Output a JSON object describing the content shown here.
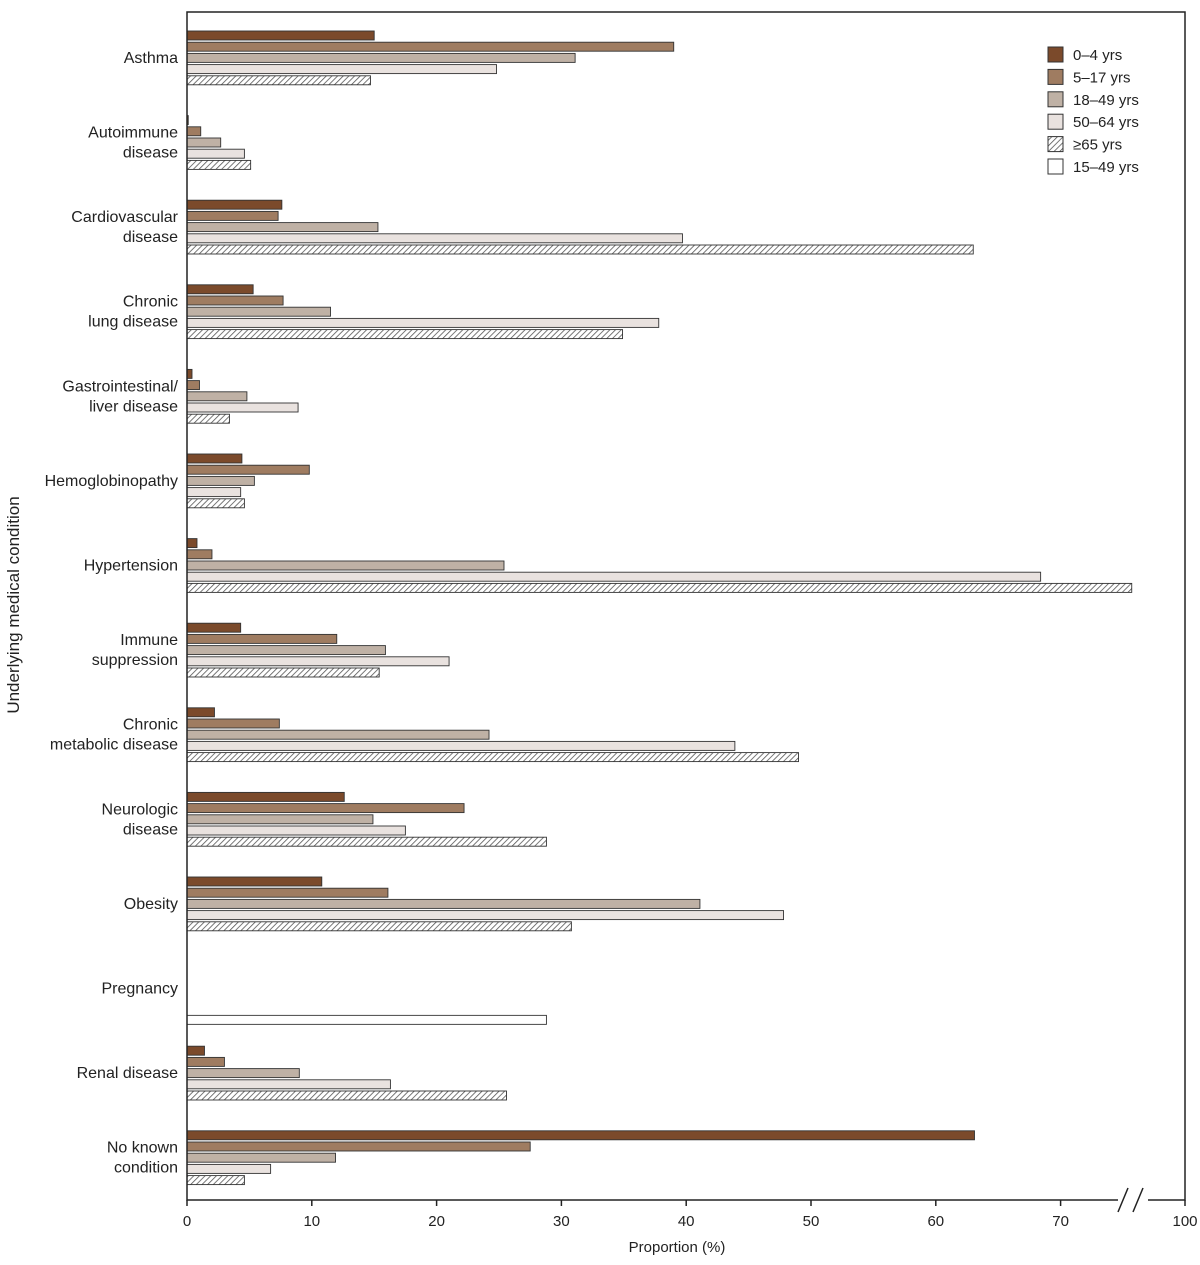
{
  "chart_data": {
    "type": "bar",
    "orientation": "horizontal",
    "xlabel": "Proportion (%)",
    "ylabel": "Underlying medical condition",
    "xlim": [
      0,
      100
    ],
    "axis_break": [
      75,
      100
    ],
    "x_ticks": [
      0,
      10,
      20,
      30,
      40,
      50,
      60,
      70,
      100
    ],
    "legend_position": "top-right",
    "categories": [
      [
        "Asthma"
      ],
      [
        "Autoimmune",
        "disease"
      ],
      [
        "Cardiovascular",
        "disease"
      ],
      [
        "Chronic",
        "lung disease"
      ],
      [
        "Gastrointestinal/",
        "liver disease"
      ],
      [
        "Hemoglobinopathy"
      ],
      [
        "Hypertension"
      ],
      [
        "Immune",
        "suppression"
      ],
      [
        "Chronic",
        "metabolic disease"
      ],
      [
        "Neurologic",
        "disease"
      ],
      [
        "Obesity"
      ],
      [
        "Pregnancy"
      ],
      [
        "Renal disease"
      ],
      [
        "No known",
        "condition"
      ]
    ],
    "series": [
      {
        "name": "0–4 yrs",
        "color": "#7b4a2b",
        "pattern": "solid",
        "values": [
          15.0,
          0.1,
          7.6,
          5.3,
          0.4,
          4.4,
          0.8,
          4.3,
          2.2,
          12.6,
          10.8,
          null,
          1.4,
          63.1
        ]
      },
      {
        "name": "5–17 yrs",
        "color": "#9f7c61",
        "pattern": "solid",
        "values": [
          39.0,
          1.1,
          7.3,
          7.7,
          1.0,
          9.8,
          2.0,
          12.0,
          7.4,
          22.2,
          16.1,
          null,
          3.0,
          27.5
        ]
      },
      {
        "name": "18–49 yrs",
        "color": "#bfb1a5",
        "pattern": "solid",
        "values": [
          31.1,
          2.7,
          15.3,
          11.5,
          4.8,
          5.4,
          25.4,
          15.9,
          24.2,
          14.9,
          41.1,
          null,
          9.0,
          11.9
        ]
      },
      {
        "name": "50–64 yrs",
        "color": "#e9e2df",
        "pattern": "solid",
        "values": [
          24.8,
          4.6,
          39.7,
          37.8,
          8.9,
          4.3,
          68.4,
          21.0,
          43.9,
          17.5,
          47.8,
          null,
          16.3,
          6.7
        ]
      },
      {
        "name": "≥65 yrs",
        "color": "#ffffff",
        "pattern": "hatched",
        "values": [
          14.7,
          5.1,
          63.0,
          34.9,
          3.4,
          4.6,
          75.7,
          15.4,
          49.0,
          28.8,
          30.8,
          null,
          25.6,
          4.6
        ]
      },
      {
        "name": "15–49 yrs",
        "color": "#ffffff",
        "pattern": "solid",
        "values": [
          null,
          null,
          null,
          null,
          null,
          null,
          null,
          null,
          null,
          null,
          null,
          28.8,
          null,
          null
        ]
      }
    ]
  }
}
